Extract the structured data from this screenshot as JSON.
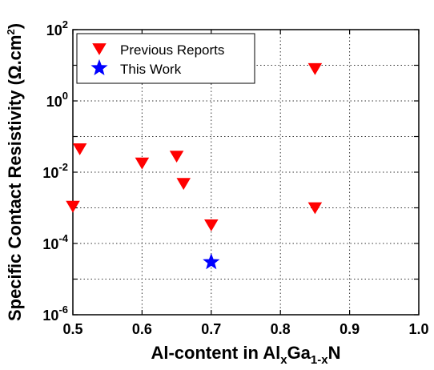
{
  "chart_data": {
    "type": "scatter",
    "xlabel_parts": {
      "main": "Al-content in Al",
      "sub1": "x",
      "mid": "Ga",
      "sub2": "1-x",
      "end": "N"
    },
    "ylabel_parts": {
      "main": "Specific Contact Resistivity (Ω.cm",
      "sup": "2",
      "end": ")"
    },
    "xlim": [
      0.5,
      1.0
    ],
    "ylim": [
      1e-06,
      100
    ],
    "yscale": "log",
    "xticks": [
      "0.5",
      "0.6",
      "0.7",
      "0.8",
      "0.9",
      "1.0"
    ],
    "yticks": [
      {
        "base": "10",
        "exp": "2",
        "value": 100
      },
      {
        "base": "10",
        "exp": "0",
        "value": 1
      },
      {
        "base": "10",
        "exp": "-2",
        "value": 0.01
      },
      {
        "base": "10",
        "exp": "-4",
        "value": 0.0001
      },
      {
        "base": "10",
        "exp": "-6",
        "value": 1e-06
      }
    ],
    "grid": true,
    "legend_position": "top-left",
    "series": [
      {
        "name": "Previous Reports",
        "marker": "triangle-down",
        "color": "#ff0000",
        "points": [
          {
            "x": 0.5,
            "y": 0.0011
          },
          {
            "x": 0.51,
            "y": 0.045
          },
          {
            "x": 0.6,
            "y": 0.018
          },
          {
            "x": 0.65,
            "y": 0.028
          },
          {
            "x": 0.66,
            "y": 0.0048
          },
          {
            "x": 0.7,
            "y": 0.00033
          },
          {
            "x": 0.85,
            "y": 8.0
          },
          {
            "x": 0.85,
            "y": 0.001
          }
        ]
      },
      {
        "name": "This Work",
        "marker": "star",
        "color": "#0000ff",
        "points": [
          {
            "x": 0.7,
            "y": 3e-05
          }
        ]
      }
    ]
  }
}
